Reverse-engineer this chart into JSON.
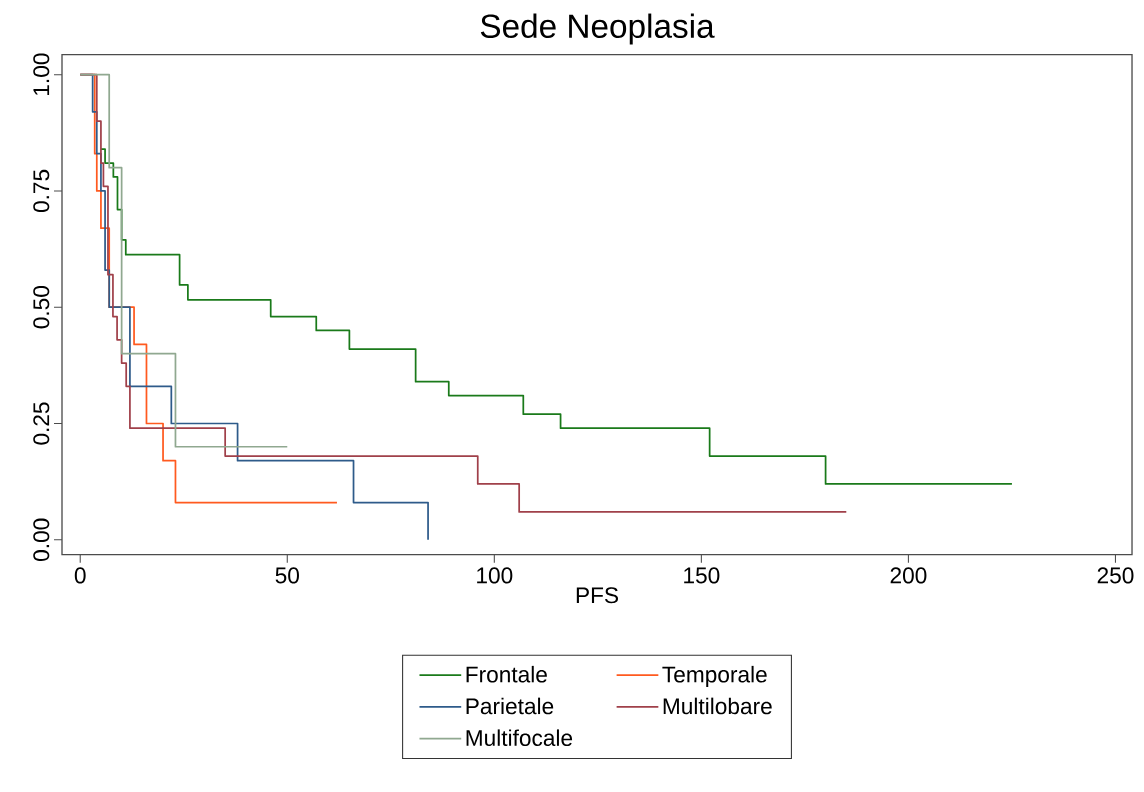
{
  "chart_data": {
    "type": "step",
    "title": "Sede Neoplasia",
    "xlabel": "PFS",
    "xlim": [
      -4.4,
      254
    ],
    "ylim": [
      -0.032,
      1.043
    ],
    "xticks": [
      0,
      50,
      100,
      150,
      200,
      250
    ],
    "yticks": [
      {
        "value": 0,
        "label": "0.00"
      },
      {
        "value": 0.25,
        "label": "0.25"
      },
      {
        "value": 0.5,
        "label": "0.50"
      },
      {
        "value": 0.75,
        "label": "0.75"
      },
      {
        "value": 1,
        "label": "1.00"
      }
    ],
    "legend": "bottom",
    "series": [
      {
        "name": "Frontale",
        "color": "#1a7a1a",
        "x": [
          5,
          6,
          8,
          9,
          10,
          11,
          24,
          26,
          46,
          57,
          65,
          81,
          89,
          107,
          116,
          152,
          180,
          225
        ],
        "values": [
          0.84,
          0.81,
          0.78,
          0.71,
          0.645,
          0.613,
          0.548,
          0.516,
          0.48,
          0.45,
          0.41,
          0.34,
          0.31,
          0.27,
          0.24,
          0.18,
          0.12,
          0.12
        ]
      },
      {
        "name": "Temporale",
        "color": "#ff5a1f",
        "x": [
          0,
          3.5,
          4,
          5,
          7,
          13,
          16,
          20,
          23,
          62
        ],
        "values": [
          1.0,
          0.83,
          0.75,
          0.67,
          0.5,
          0.42,
          0.25,
          0.17,
          0.08,
          0.08
        ]
      },
      {
        "name": "Parietale",
        "color": "#2e5b8a",
        "x": [
          0,
          3,
          4,
          5,
          6,
          7,
          12,
          22,
          38,
          66,
          84
        ],
        "values": [
          1.0,
          0.92,
          0.83,
          0.75,
          0.58,
          0.5,
          0.33,
          0.25,
          0.17,
          0.08,
          0
        ]
      },
      {
        "name": "Multilobare",
        "color": "#a0404a",
        "x": [
          0,
          4,
          5,
          5.6,
          6.7,
          7.9,
          8.9,
          10,
          11.1,
          12,
          35,
          96,
          106,
          185
        ],
        "values": [
          1.0,
          0.9,
          0.81,
          0.76,
          0.57,
          0.48,
          0.43,
          0.38,
          0.33,
          0.24,
          0.18,
          0.12,
          0.06,
          0.06
        ]
      },
      {
        "name": "Multifocale",
        "color": "#90a890",
        "x": [
          0,
          7,
          10,
          23,
          50
        ],
        "values": [
          1.0,
          0.8,
          0.4,
          0.2,
          0.2
        ]
      }
    ]
  }
}
